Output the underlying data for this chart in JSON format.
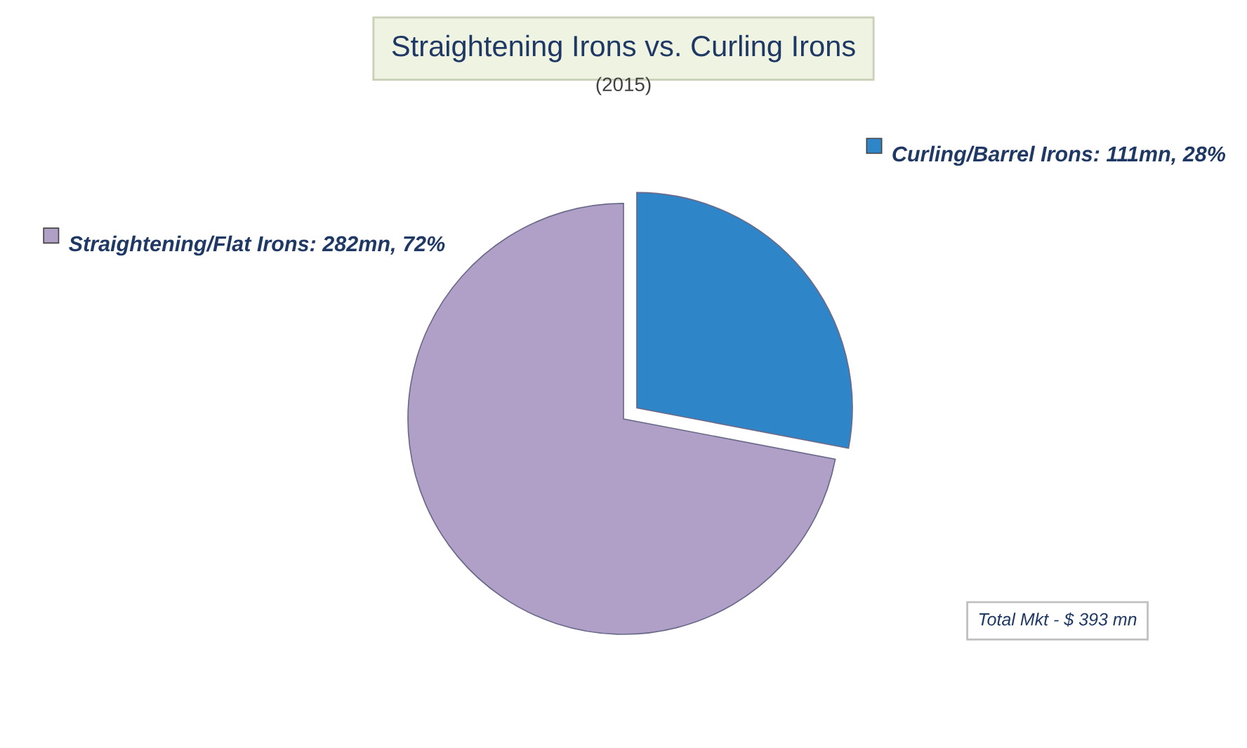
{
  "chart_data": {
    "type": "pie",
    "title": "Straightening Irons vs. Curling Irons",
    "subtitle": "(2015)",
    "categories": [
      "Straightening/Flat Irons: 282mn, 72%",
      "Curling/Barrel Irons: 111mn, 28%"
    ],
    "values": [
      72,
      28
    ],
    "colors": [
      "#b09fc6",
      "#2e86c8"
    ],
    "legend": "top",
    "annotations": [
      "Total Mkt - $ 393 mn"
    ]
  }
}
